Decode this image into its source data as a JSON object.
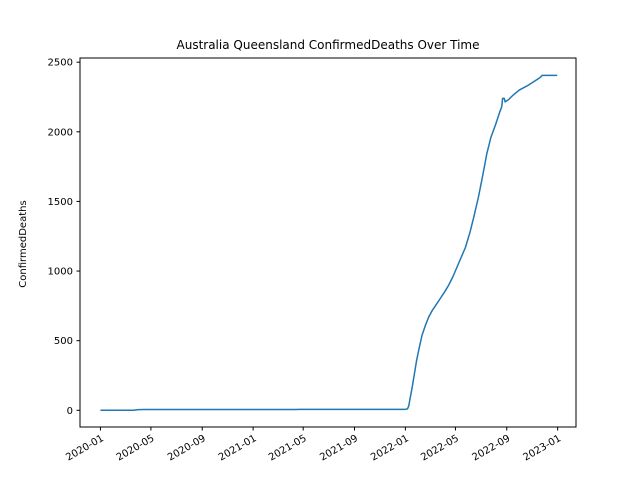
{
  "chart_data": {
    "type": "line",
    "title": "Australia Queensland ConfirmedDeaths Over Time",
    "xlabel": "",
    "ylabel": "ConfirmedDeaths",
    "xlim": [
      "2019-11-13",
      "2023-02-14"
    ],
    "ylim": [
      -120,
      2530
    ],
    "grid": false,
    "legend": "none",
    "x_ticks": [
      "2020-01",
      "2020-05",
      "2020-09",
      "2021-01",
      "2021-05",
      "2021-09",
      "2022-01",
      "2022-05",
      "2022-09",
      "2023-01"
    ],
    "y_ticks": [
      0,
      500,
      1000,
      1500,
      2000,
      2500
    ],
    "series": [
      {
        "color": "#1f77b4",
        "points": [
          [
            "2020-01-01",
            0
          ],
          [
            "2020-03-20",
            0
          ],
          [
            "2020-04-01",
            5
          ],
          [
            "2020-04-15",
            6
          ],
          [
            "2021-04-15",
            6
          ],
          [
            "2021-04-20",
            7
          ],
          [
            "2022-01-01",
            7
          ],
          [
            "2022-01-06",
            10
          ],
          [
            "2022-01-09",
            30
          ],
          [
            "2022-01-12",
            80
          ],
          [
            "2022-01-17",
            160
          ],
          [
            "2022-01-22",
            250
          ],
          [
            "2022-01-28",
            360
          ],
          [
            "2022-02-04",
            460
          ],
          [
            "2022-02-10",
            540
          ],
          [
            "2022-02-18",
            610
          ],
          [
            "2022-02-26",
            670
          ],
          [
            "2022-03-06",
            715
          ],
          [
            "2022-03-15",
            755
          ],
          [
            "2022-03-25",
            800
          ],
          [
            "2022-04-05",
            850
          ],
          [
            "2022-04-15",
            900
          ],
          [
            "2022-04-25",
            960
          ],
          [
            "2022-05-05",
            1030
          ],
          [
            "2022-05-15",
            1100
          ],
          [
            "2022-05-25",
            1170
          ],
          [
            "2022-06-05",
            1280
          ],
          [
            "2022-06-15",
            1400
          ],
          [
            "2022-06-25",
            1530
          ],
          [
            "2022-07-05",
            1680
          ],
          [
            "2022-07-15",
            1840
          ],
          [
            "2022-07-25",
            1960
          ],
          [
            "2022-08-05",
            2050
          ],
          [
            "2022-08-15",
            2140
          ],
          [
            "2022-08-20",
            2180
          ],
          [
            "2022-08-22",
            2240
          ],
          [
            "2022-08-26",
            2240
          ],
          [
            "2022-08-28",
            2215
          ],
          [
            "2022-09-05",
            2230
          ],
          [
            "2022-09-15",
            2260
          ],
          [
            "2022-10-01",
            2300
          ],
          [
            "2022-10-20",
            2330
          ],
          [
            "2022-11-05",
            2360
          ],
          [
            "2022-11-20",
            2390
          ],
          [
            "2022-11-25",
            2405
          ],
          [
            "2022-12-31",
            2405
          ]
        ]
      }
    ]
  }
}
